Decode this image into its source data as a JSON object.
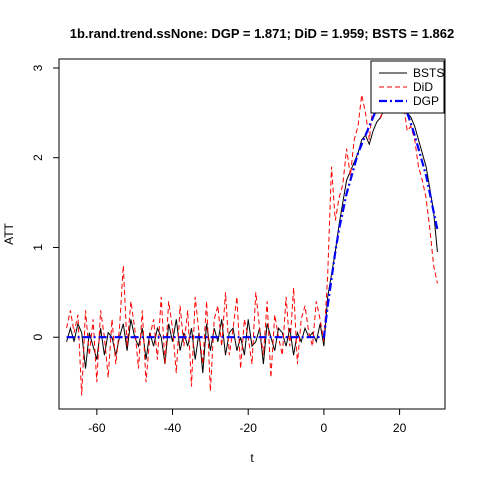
{
  "chart_data": {
    "type": "line",
    "title": "1b.rand.trend.ssNone: DGP = 1.871; DiD = 1.959;  BSTS = 1.862",
    "xlabel": "t",
    "ylabel": "ATT",
    "xlim": [
      -70,
      32
    ],
    "ylim": [
      -0.8,
      3.1
    ],
    "xticks": [
      -60,
      -40,
      -20,
      0,
      20
    ],
    "yticks": [
      0,
      1,
      2,
      3
    ],
    "grid": false,
    "legend_position": "top-right",
    "series": [
      {
        "name": "BSTS",
        "color": "#000000",
        "style": "solid",
        "x": [
          -68,
          -67,
          -66,
          -65,
          -64,
          -63,
          -62,
          -61,
          -60,
          -59,
          -58,
          -57,
          -56,
          -55,
          -54,
          -53,
          -52,
          -51,
          -50,
          -49,
          -48,
          -47,
          -46,
          -45,
          -44,
          -43,
          -42,
          -41,
          -40,
          -39,
          -38,
          -37,
          -36,
          -35,
          -34,
          -33,
          -32,
          -31,
          -30,
          -29,
          -28,
          -27,
          -26,
          -25,
          -24,
          -23,
          -22,
          -21,
          -20,
          -19,
          -18,
          -17,
          -16,
          -15,
          -14,
          -13,
          -12,
          -11,
          -10,
          -9,
          -8,
          -7,
          -6,
          -5,
          -4,
          -3,
          -2,
          -1,
          0,
          1,
          2,
          3,
          4,
          5,
          6,
          7,
          8,
          9,
          10,
          11,
          12,
          13,
          14,
          15,
          16,
          17,
          18,
          19,
          20,
          21,
          22,
          23,
          24,
          25,
          26,
          27,
          28,
          29,
          30
        ],
        "y": [
          -0.05,
          0.1,
          -0.05,
          0.15,
          0.05,
          -0.35,
          0.05,
          -0.1,
          -0.25,
          0.1,
          -0.2,
          0.05,
          0.0,
          -0.2,
          0.0,
          0.15,
          -0.15,
          0.2,
          0.0,
          -0.1,
          0.1,
          -0.25,
          0.05,
          -0.1,
          0.1,
          0.0,
          -0.3,
          0.15,
          -0.05,
          0.2,
          -0.15,
          0.05,
          -0.1,
          0.1,
          -0.25,
          0.05,
          -0.4,
          0.15,
          -0.15,
          0.1,
          -0.05,
          0.2,
          -0.2,
          0.05,
          0.1,
          -0.15,
          0.0,
          -0.2,
          0.2,
          -0.1,
          -0.05,
          0.1,
          -0.3,
          0.15,
          0.0,
          -0.15,
          0.1,
          0.05,
          -0.1,
          0.1,
          -0.2,
          0.05,
          -0.05,
          0.1,
          0.0,
          0.05,
          -0.05,
          0.15,
          -0.1,
          0.45,
          0.7,
          0.95,
          1.25,
          1.5,
          1.75,
          1.85,
          1.95,
          2.05,
          2.2,
          2.25,
          2.15,
          2.3,
          2.4,
          2.45,
          2.55,
          2.6,
          2.7,
          2.65,
          2.7,
          2.75,
          2.5,
          2.45,
          2.35,
          2.2,
          2.05,
          1.9,
          1.65,
          1.4,
          0.95
        ]
      },
      {
        "name": "DiD",
        "color": "#ff0000",
        "style": "dashed",
        "x": [
          -68,
          -67,
          -66,
          -65,
          -64,
          -63,
          -62,
          -61,
          -60,
          -59,
          -58,
          -57,
          -56,
          -55,
          -54,
          -53,
          -52,
          -51,
          -50,
          -49,
          -48,
          -47,
          -46,
          -45,
          -44,
          -43,
          -42,
          -41,
          -40,
          -39,
          -38,
          -37,
          -36,
          -35,
          -34,
          -33,
          -32,
          -31,
          -30,
          -29,
          -28,
          -27,
          -26,
          -25,
          -24,
          -23,
          -22,
          -21,
          -20,
          -19,
          -18,
          -17,
          -16,
          -15,
          -14,
          -13,
          -12,
          -11,
          -10,
          -9,
          -8,
          -7,
          -6,
          -5,
          -4,
          -3,
          -2,
          -1,
          0,
          1,
          2,
          3,
          4,
          5,
          6,
          7,
          8,
          9,
          10,
          11,
          12,
          13,
          14,
          15,
          16,
          17,
          18,
          19,
          20,
          21,
          22,
          23,
          24,
          25,
          26,
          27,
          28,
          29,
          30
        ],
        "y": [
          0.1,
          0.3,
          0.05,
          0.25,
          -0.65,
          0.3,
          -0.2,
          0.2,
          -0.5,
          0.3,
          0.0,
          -0.45,
          0.2,
          -0.3,
          0.1,
          0.8,
          -0.1,
          0.4,
          0.1,
          -0.35,
          0.3,
          -0.5,
          0.0,
          0.2,
          -0.25,
          0.45,
          -0.3,
          0.4,
          0.1,
          -0.4,
          0.35,
          -0.1,
          0.3,
          -0.55,
          0.45,
          0.05,
          -0.3,
          0.4,
          -0.6,
          0.2,
          0.35,
          -0.1,
          0.5,
          -0.2,
          0.1,
          0.45,
          -0.35,
          0.2,
          0.0,
          -0.3,
          0.5,
          0.1,
          -0.2,
          0.4,
          -0.45,
          0.25,
          0.0,
          -0.2,
          0.45,
          -0.1,
          0.55,
          -0.3,
          0.2,
          0.35,
          0.05,
          -0.1,
          0.4,
          0.2,
          -0.05,
          0.7,
          1.9,
          1.3,
          1.55,
          1.7,
          2.1,
          1.8,
          2.2,
          2.35,
          2.7,
          2.5,
          2.2,
          2.6,
          2.75,
          2.45,
          2.55,
          2.85,
          2.7,
          2.55,
          2.65,
          2.6,
          2.3,
          2.35,
          2.2,
          1.9,
          1.75,
          1.55,
          1.2,
          0.8,
          0.6
        ]
      },
      {
        "name": "DGP",
        "color": "#0000ff",
        "style": "dashdot",
        "x": [
          -68,
          -67,
          -66,
          -65,
          -64,
          -63,
          -62,
          -61,
          -60,
          -59,
          -58,
          -57,
          -56,
          -55,
          -54,
          -53,
          -52,
          -51,
          -50,
          -49,
          -48,
          -47,
          -46,
          -45,
          -44,
          -43,
          -42,
          -41,
          -40,
          -39,
          -38,
          -37,
          -36,
          -35,
          -34,
          -33,
          -32,
          -31,
          -30,
          -29,
          -28,
          -27,
          -26,
          -25,
          -24,
          -23,
          -22,
          -21,
          -20,
          -19,
          -18,
          -17,
          -16,
          -15,
          -14,
          -13,
          -12,
          -11,
          -10,
          -9,
          -8,
          -7,
          -6,
          -5,
          -4,
          -3,
          -2,
          -1,
          0,
          1,
          2,
          3,
          4,
          5,
          6,
          7,
          8,
          9,
          10,
          11,
          12,
          13,
          14,
          15,
          16,
          17,
          18,
          19,
          20,
          21,
          22,
          23,
          24,
          25,
          26,
          27,
          28,
          29,
          30
        ],
        "y": [
          0,
          0,
          0,
          0,
          0,
          0,
          0,
          0,
          0,
          0,
          0,
          0,
          0,
          0,
          0,
          0,
          0,
          0,
          0,
          0,
          0,
          0,
          0,
          0,
          0,
          0,
          0,
          0,
          0,
          0,
          0,
          0,
          0,
          0,
          0,
          0,
          0,
          0,
          0,
          0,
          0,
          0,
          0,
          0,
          0,
          0,
          0,
          0,
          0,
          0,
          0,
          0,
          0,
          0,
          0,
          0,
          0,
          0,
          0,
          0,
          0,
          0,
          0,
          0,
          0,
          0,
          0,
          0,
          0,
          0.35,
          0.65,
          0.95,
          1.2,
          1.4,
          1.6,
          1.75,
          1.9,
          2.05,
          2.15,
          2.25,
          2.35,
          2.45,
          2.55,
          2.62,
          2.68,
          2.72,
          2.74,
          2.72,
          2.68,
          2.6,
          2.5,
          2.38,
          2.25,
          2.1,
          1.95,
          1.8,
          1.6,
          1.4,
          1.2
        ]
      }
    ]
  }
}
